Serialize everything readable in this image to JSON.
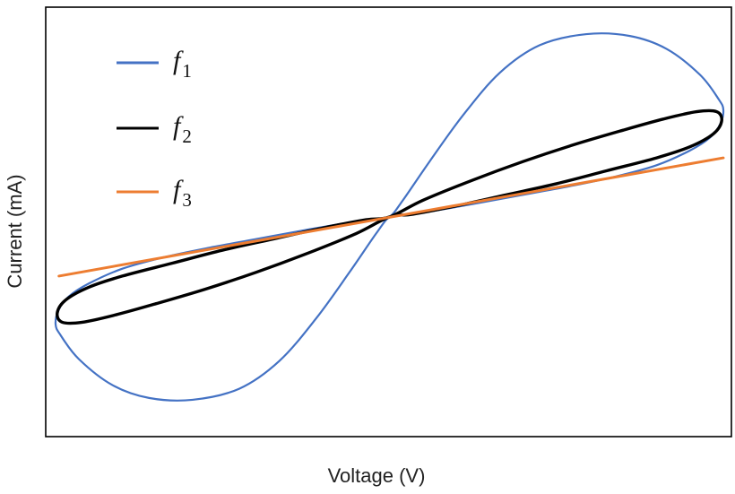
{
  "chart_data": {
    "type": "line",
    "title": "",
    "xlabel": "Voltage (V)",
    "ylabel": "Current (mA)",
    "xlim": [
      -1,
      1
    ],
    "ylim": [
      -1,
      1
    ],
    "grid": false,
    "ticks": false,
    "legend_position": "top-left",
    "series": [
      {
        "name": "f1",
        "symbol": "f",
        "subscript": "1",
        "color": "#4472c4",
        "closed": true,
        "x": [
          0.0,
          0.04,
          0.12,
          0.22,
          0.33,
          0.45,
          0.59,
          0.72,
          0.83,
          0.93,
          0.985,
          1.0,
          0.99,
          0.96,
          0.9,
          0.8,
          0.68,
          0.55,
          0.4,
          0.25,
          0.12,
          0.04,
          0.0,
          -0.04,
          -0.12,
          -0.22,
          -0.33,
          -0.45,
          -0.59,
          -0.72,
          -0.83,
          -0.93,
          -0.985,
          -1.0,
          -0.99,
          -0.96,
          -0.9,
          -0.8,
          -0.68,
          -0.55,
          -0.4,
          -0.25,
          -0.12,
          -0.04
        ],
        "y": [
          0.0,
          0.09,
          0.3,
          0.55,
          0.78,
          0.93,
          0.99,
          0.98,
          0.91,
          0.77,
          0.64,
          0.58,
          0.5,
          0.43,
          0.36,
          0.28,
          0.22,
          0.17,
          0.12,
          0.07,
          0.03,
          0.01,
          0.0,
          -0.09,
          -0.3,
          -0.55,
          -0.78,
          -0.93,
          -0.99,
          -0.98,
          -0.91,
          -0.77,
          -0.64,
          -0.58,
          -0.5,
          -0.43,
          -0.36,
          -0.28,
          -0.22,
          -0.17,
          -0.12,
          -0.07,
          -0.03,
          -0.01
        ]
      },
      {
        "name": "f2",
        "symbol": "f",
        "subscript": "2",
        "color": "#000000",
        "closed": true,
        "x": [
          0.0,
          0.1,
          0.25,
          0.4,
          0.55,
          0.7,
          0.82,
          0.92,
          0.98,
          0.995,
          0.97,
          0.9,
          0.8,
          0.65,
          0.5,
          0.35,
          0.2,
          0.07,
          0.0,
          -0.1,
          -0.25,
          -0.4,
          -0.55,
          -0.7,
          -0.82,
          -0.92,
          -0.98,
          -0.995,
          -0.97,
          -0.9,
          -0.8,
          -0.65,
          -0.5,
          -0.35,
          -0.2,
          -0.07
        ],
        "y": [
          0.0,
          0.09,
          0.2,
          0.3,
          0.39,
          0.47,
          0.53,
          0.57,
          0.57,
          0.52,
          0.45,
          0.38,
          0.32,
          0.25,
          0.18,
          0.12,
          0.06,
          0.015,
          0.0,
          -0.09,
          -0.2,
          -0.3,
          -0.39,
          -0.47,
          -0.53,
          -0.57,
          -0.57,
          -0.52,
          -0.45,
          -0.38,
          -0.32,
          -0.25,
          -0.18,
          -0.12,
          -0.06,
          -0.015
        ]
      },
      {
        "name": "f3",
        "symbol": "f",
        "subscript": "3",
        "color": "#ed7d31",
        "closed": false,
        "x": [
          -0.99,
          1.0
        ],
        "y": [
          -0.32,
          0.32
        ]
      }
    ]
  }
}
